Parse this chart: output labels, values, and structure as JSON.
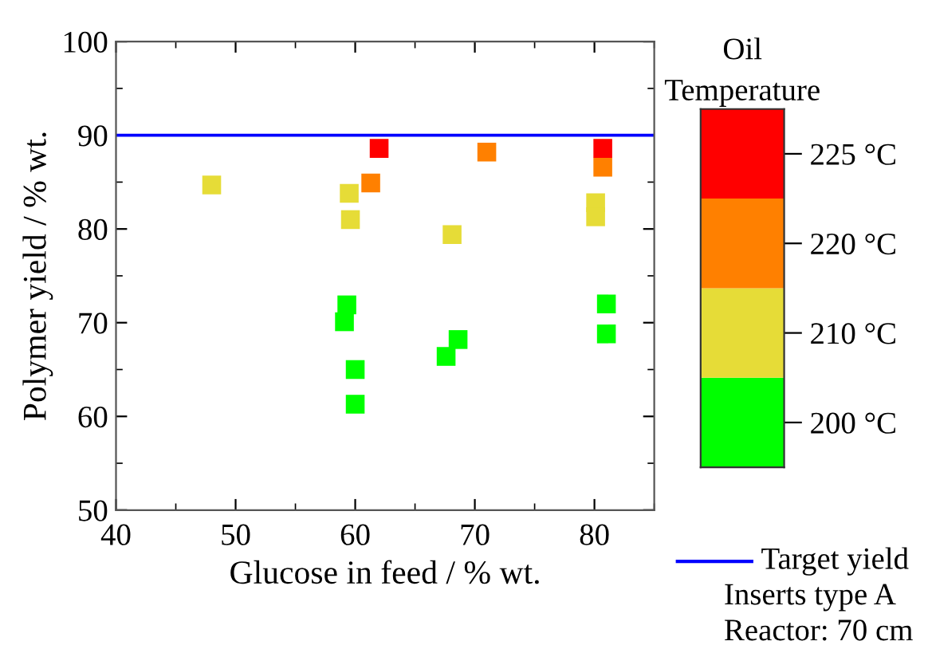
{
  "chart_data": {
    "type": "scatter",
    "xlabel": "Glucose in feed / % wt.",
    "ylabel": "Polymer yield / % wt.",
    "legend_title": "Oil\nTemperature",
    "xlim": [
      40,
      85
    ],
    "xticks": [
      40,
      50,
      60,
      70,
      80
    ],
    "ylim": [
      50,
      100
    ],
    "yticks": [
      50,
      60,
      70,
      80,
      90,
      100
    ],
    "marker": "square",
    "legend": "right",
    "grid": false,
    "series": [
      {
        "name": "200 °C",
        "color": "#00ff00",
        "x": [
          59.3,
          59.1,
          60.0,
          60.0,
          67.6,
          68.6,
          81.0,
          81.0
        ],
        "values": [
          71.9,
          70.1,
          65.0,
          61.3,
          66.4,
          68.2,
          72.0,
          68.8
        ]
      },
      {
        "name": "210 °C",
        "color": "#e6dc37",
        "x": [
          48.0,
          59.5,
          59.6,
          68.1,
          80.1,
          80.1
        ],
        "values": [
          84.7,
          83.8,
          81.0,
          79.4,
          82.8,
          81.3
        ]
      },
      {
        "name": "220 °C",
        "color": "#ff8000",
        "x": [
          61.3,
          71.0,
          80.7
        ],
        "values": [
          84.9,
          88.2,
          86.6
        ]
      },
      {
        "name": "225 °C",
        "color": "#ff0000",
        "x": [
          62.0,
          80.7
        ],
        "values": [
          88.6,
          88.6
        ]
      }
    ],
    "ref_lines": [
      {
        "axis": "y",
        "value": 90,
        "label": "Target yield",
        "color": "#0000ff"
      }
    ],
    "annotations": [
      "Inserts type A",
      "Reactor: 70 cm"
    ]
  }
}
